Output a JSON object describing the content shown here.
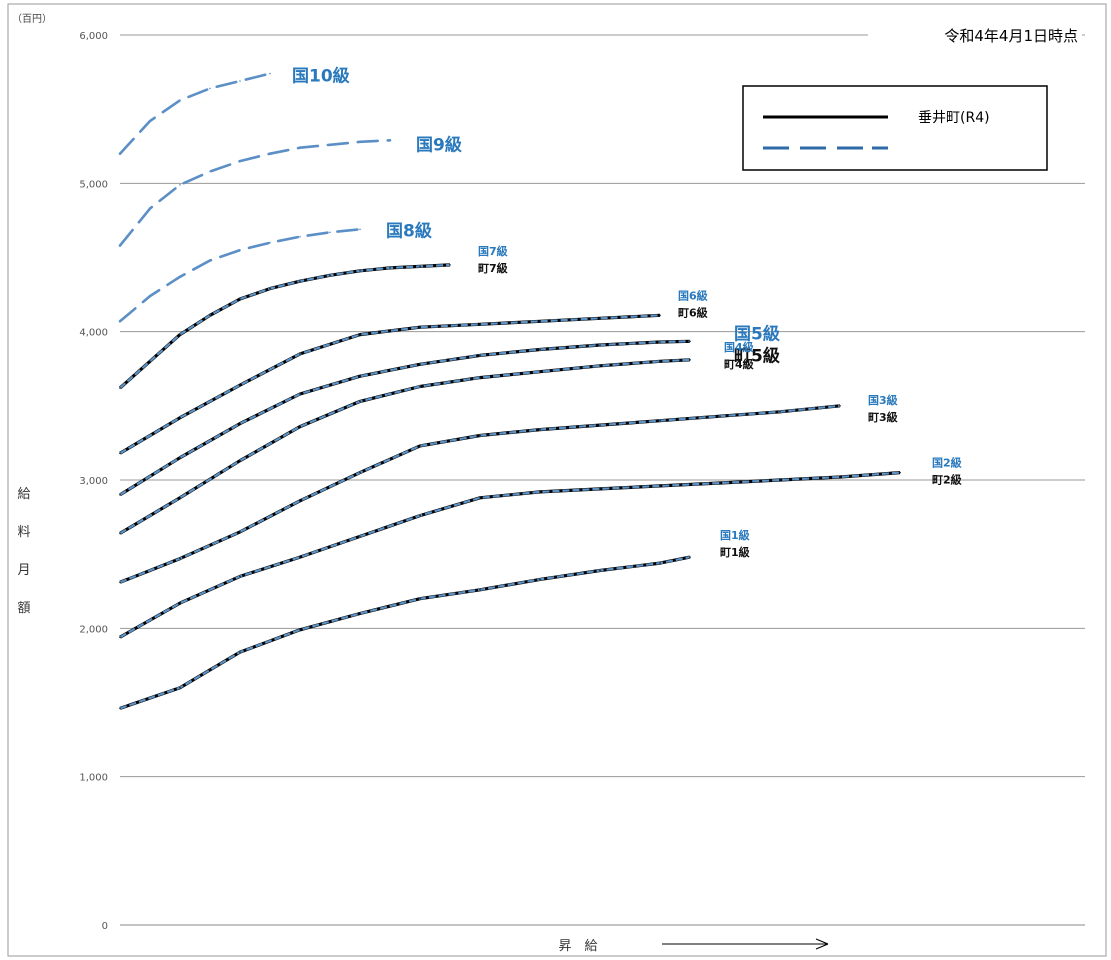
{
  "chart_data": {
    "type": "line",
    "unit": "（百円）",
    "note": "令和4年4月1日時点",
    "ylabel": "給料月額",
    "xlabel": "昇　給",
    "ylim": [
      0,
      6000
    ],
    "yticks": [
      0,
      1000,
      2000,
      3000,
      4000,
      5000,
      6000
    ],
    "ytick_labels": [
      "0",
      "1,000",
      "2,000",
      "3,000",
      "4,000",
      "5,000",
      "6,000"
    ],
    "grid": true,
    "legend": {
      "position": "top-right",
      "entries": [
        {
          "label": "垂井町(R4)",
          "style": "solid",
          "color": "#000000"
        },
        {
          "label": "",
          "style": "dashed",
          "color": "#2e6aa8"
        }
      ]
    },
    "x_description": "step index (relative)",
    "series": [
      {
        "name": "国10級",
        "style": "dashed",
        "x": [
          0,
          5,
          10,
          15,
          20,
          25
        ],
        "y": [
          5200,
          5420,
          5560,
          5640,
          5690,
          5740
        ]
      },
      {
        "name": "国9級",
        "style": "dashed",
        "x": [
          0,
          5,
          10,
          15,
          20,
          25,
          30,
          35,
          40,
          45
        ],
        "y": [
          4580,
          4830,
          4990,
          5080,
          5150,
          5200,
          5240,
          5260,
          5280,
          5290
        ]
      },
      {
        "name": "国8級",
        "style": "dashed",
        "x": [
          0,
          5,
          10,
          15,
          20,
          25,
          30,
          35,
          40
        ],
        "y": [
          4070,
          4240,
          4370,
          4480,
          4550,
          4600,
          4640,
          4670,
          4690
        ]
      },
      {
        "name": "国7級",
        "town": "町7級",
        "style": "solid",
        "x": [
          0,
          5,
          10,
          15,
          20,
          25,
          30,
          35,
          40,
          45,
          50,
          55
        ],
        "y": [
          3620,
          3800,
          3980,
          4110,
          4220,
          4290,
          4340,
          4380,
          4410,
          4430,
          4440,
          4450
        ]
      },
      {
        "name": "国6級",
        "town": "町6級",
        "style": "solid",
        "x": [
          0,
          10,
          20,
          30,
          40,
          50,
          60,
          70,
          80,
          90
        ],
        "y": [
          3180,
          3420,
          3640,
          3850,
          3980,
          4030,
          4050,
          4070,
          4090,
          4110
        ]
      },
      {
        "name": "国5級",
        "town": "町5級",
        "style": "solid",
        "x": [
          0,
          10,
          20,
          30,
          40,
          50,
          60,
          70,
          80,
          90,
          95
        ],
        "y": [
          2900,
          3150,
          3380,
          3580,
          3700,
          3780,
          3840,
          3880,
          3910,
          3930,
          3935
        ]
      },
      {
        "name": "国4級",
        "town": "町4級",
        "style": "solid",
        "x": [
          0,
          10,
          20,
          30,
          40,
          50,
          60,
          70,
          80,
          90,
          95
        ],
        "y": [
          2640,
          2880,
          3130,
          3360,
          3530,
          3630,
          3690,
          3730,
          3770,
          3800,
          3810
        ]
      },
      {
        "name": "国3級",
        "town": "町3級",
        "style": "solid",
        "x": [
          0,
          10,
          20,
          30,
          40,
          50,
          60,
          70,
          80,
          90,
          100,
          110,
          120
        ],
        "y": [
          2310,
          2470,
          2650,
          2860,
          3050,
          3230,
          3300,
          3340,
          3370,
          3400,
          3430,
          3460,
          3500
        ]
      },
      {
        "name": "国2級",
        "town": "町2級",
        "style": "solid",
        "x": [
          0,
          10,
          20,
          30,
          40,
          50,
          60,
          70,
          80,
          90,
          100,
          110,
          120,
          130
        ],
        "y": [
          1940,
          2170,
          2350,
          2480,
          2620,
          2760,
          2880,
          2920,
          2940,
          2960,
          2980,
          3000,
          3020,
          3050
        ]
      },
      {
        "name": "国1級",
        "town": "町1級",
        "style": "solid",
        "x": [
          0,
          10,
          15,
          20,
          30,
          40,
          50,
          60,
          70,
          80,
          90,
          95
        ],
        "y": [
          1460,
          1600,
          1720,
          1840,
          1990,
          2100,
          2200,
          2260,
          2330,
          2390,
          2440,
          2480
        ]
      }
    ]
  }
}
